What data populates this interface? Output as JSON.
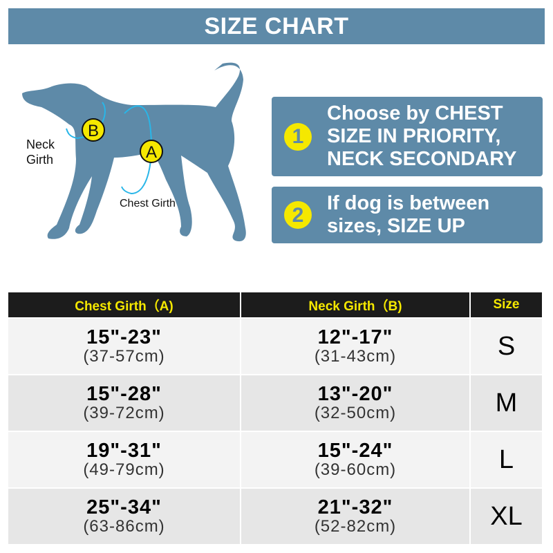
{
  "title": "SIZE CHART",
  "diagram": {
    "neck_label_1": "Neck",
    "neck_label_2": "Girth",
    "chest_label": "Chest Girth",
    "marker_a": "A",
    "marker_b": "B",
    "dog_color": "#5e8aa8",
    "marker_color": "#f5e800",
    "arrow_color": "#29b6e8"
  },
  "tips": [
    {
      "number": "1",
      "line1": "Choose by CHEST",
      "line2": "SIZE IN PRIORITY,",
      "line3": "NECK SECONDARY"
    },
    {
      "number": "2",
      "line1": "If dog is between",
      "line2": "sizes, SIZE UP"
    }
  ],
  "table": {
    "headers": [
      "Chest Girth（A)",
      "Neck Girth（B)",
      "Size"
    ],
    "rows": [
      {
        "chest_in": "15\"-23\"",
        "chest_cm": "(37-57cm)",
        "neck_in": "12\"-17\"",
        "neck_cm": "(31-43cm)",
        "size": "S"
      },
      {
        "chest_in": "15\"-28\"",
        "chest_cm": "(39-72cm)",
        "neck_in": "13\"-20\"",
        "neck_cm": "(32-50cm)",
        "size": "M"
      },
      {
        "chest_in": "19\"-31\"",
        "chest_cm": "(49-79cm)",
        "neck_in": "15\"-24\"",
        "neck_cm": "(39-60cm)",
        "size": "L"
      },
      {
        "chest_in": "25\"-34\"",
        "chest_cm": "(63-86cm)",
        "neck_in": "21\"-32\"",
        "neck_cm": "(52-82cm)",
        "size": "XL"
      }
    ]
  }
}
